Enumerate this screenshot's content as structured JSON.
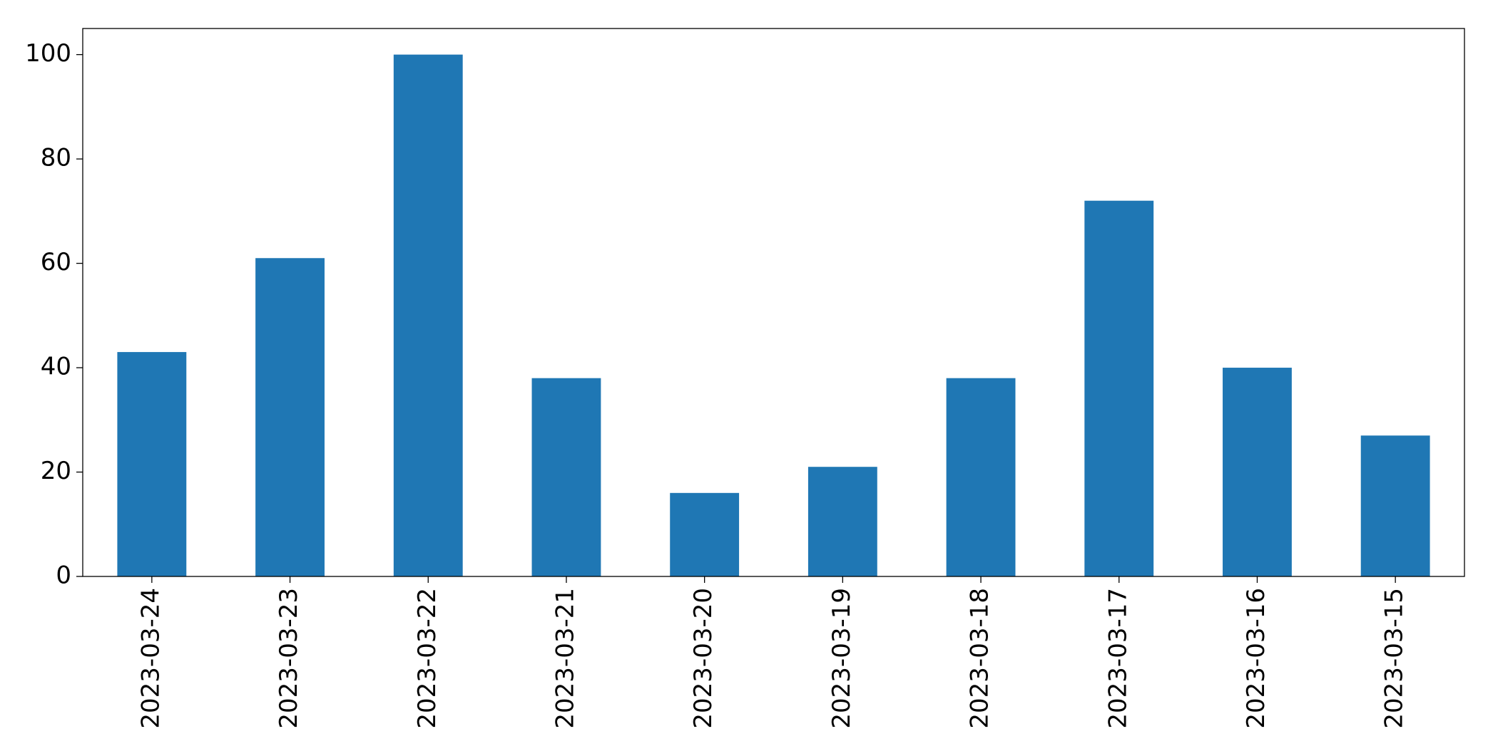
{
  "chart_data": {
    "type": "bar",
    "categories": [
      "2023-03-24",
      "2023-03-23",
      "2023-03-22",
      "2023-03-21",
      "2023-03-20",
      "2023-03-19",
      "2023-03-18",
      "2023-03-17",
      "2023-03-16",
      "2023-03-15"
    ],
    "values": [
      43,
      61,
      100,
      38,
      16,
      21,
      38,
      72,
      40,
      27
    ],
    "color": "#1f77b4",
    "ylim": [
      0,
      105
    ],
    "yticks": [
      0,
      20,
      40,
      60,
      80,
      100
    ],
    "grid": false
  }
}
